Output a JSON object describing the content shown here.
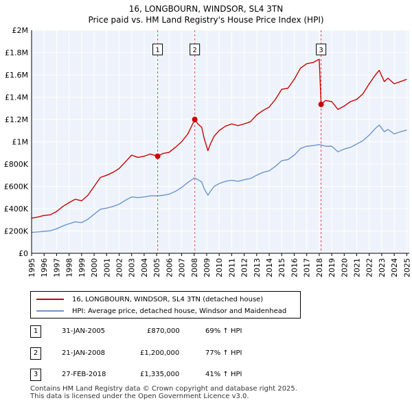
{
  "chart_data": {
    "type": "line",
    "title": "16, LONGBOURN, WINDSOR, SL4 3TN",
    "subtitle": "Price paid vs. HM Land Registry's House Price Index (HPI)",
    "xlim": [
      1995,
      2025.2
    ],
    "ylim": [
      0,
      2000000
    ],
    "x_ticks": [
      1995,
      1996,
      1997,
      1998,
      1999,
      2000,
      2001,
      2002,
      2003,
      2004,
      2005,
      2006,
      2007,
      2008,
      2009,
      2010,
      2011,
      2012,
      2013,
      2014,
      2015,
      2016,
      2017,
      2018,
      2019,
      2020,
      2021,
      2022,
      2023,
      2024,
      2025
    ],
    "y_ticks": [
      {
        "value": 0,
        "label": "£0"
      },
      {
        "value": 200000,
        "label": "£200K"
      },
      {
        "value": 400000,
        "label": "£400K"
      },
      {
        "value": 600000,
        "label": "£600K"
      },
      {
        "value": 800000,
        "label": "£800K"
      },
      {
        "value": 1000000,
        "label": "£1M"
      },
      {
        "value": 1200000,
        "label": "£1.2M"
      },
      {
        "value": 1400000,
        "label": "£1.4M"
      },
      {
        "value": 1600000,
        "label": "£1.6M"
      },
      {
        "value": 1800000,
        "label": "£1.8M"
      },
      {
        "value": 2000000,
        "label": "£2M"
      }
    ],
    "grid": true,
    "series": [
      {
        "name": "16, LONGBOURN, WINDSOR, SL4 3TN (detached house)",
        "color": "#cc0000",
        "x": [
          1995.0,
          1995.5,
          1996.0,
          1996.5,
          1997.0,
          1997.5,
          1998.0,
          1998.5,
          1999.0,
          1999.5,
          2000.0,
          2000.5,
          2001.0,
          2001.5,
          2002.0,
          2002.5,
          2003.0,
          2003.5,
          2004.0,
          2004.5,
          2005.08,
          2005.5,
          2006.0,
          2006.5,
          2007.0,
          2007.5,
          2008.05,
          2008.3,
          2008.6,
          2008.8,
          2009.1,
          2009.3,
          2009.6,
          2010.0,
          2010.5,
          2011.0,
          2011.5,
          2012.0,
          2012.5,
          2013.0,
          2013.5,
          2014.0,
          2014.5,
          2015.0,
          2015.5,
          2016.0,
          2016.5,
          2017.0,
          2017.5,
          2018.0,
          2018.15,
          2018.5,
          2019.0,
          2019.5,
          2020.0,
          2020.5,
          2021.0,
          2021.5,
          2022.0,
          2022.5,
          2022.8,
          2023.2,
          2023.5,
          2024.0,
          2024.5,
          2025.0
        ],
        "y": [
          315000,
          325000,
          340000,
          345000,
          375000,
          420000,
          455000,
          485000,
          470000,
          520000,
          600000,
          680000,
          700000,
          725000,
          760000,
          820000,
          880000,
          860000,
          870000,
          890000,
          870000,
          895000,
          905000,
          950000,
          1000000,
          1070000,
          1200000,
          1160000,
          1130000,
          1030000,
          920000,
          980000,
          1050000,
          1100000,
          1140000,
          1160000,
          1145000,
          1160000,
          1180000,
          1240000,
          1280000,
          1310000,
          1380000,
          1470000,
          1480000,
          1560000,
          1660000,
          1700000,
          1710000,
          1740000,
          1335000,
          1370000,
          1360000,
          1290000,
          1320000,
          1360000,
          1380000,
          1430000,
          1520000,
          1600000,
          1640000,
          1540000,
          1570000,
          1520000,
          1540000,
          1560000
        ]
      },
      {
        "name": "HPI: Average price, detached house, Windsor and Maidenhead",
        "color": "#6a95cc",
        "x": [
          1995.0,
          1995.5,
          1996.0,
          1996.5,
          1997.0,
          1997.5,
          1998.0,
          1998.5,
          1999.0,
          1999.5,
          2000.0,
          2000.5,
          2001.0,
          2001.5,
          2002.0,
          2002.5,
          2003.0,
          2003.5,
          2004.0,
          2004.5,
          2005.0,
          2005.5,
          2006.0,
          2006.5,
          2007.0,
          2007.5,
          2008.0,
          2008.3,
          2008.6,
          2008.8,
          2009.1,
          2009.3,
          2009.6,
          2010.0,
          2010.5,
          2011.0,
          2011.5,
          2012.0,
          2012.5,
          2013.0,
          2013.5,
          2014.0,
          2014.5,
          2015.0,
          2015.5,
          2016.0,
          2016.5,
          2017.0,
          2017.5,
          2018.0,
          2018.5,
          2019.0,
          2019.5,
          2020.0,
          2020.5,
          2021.0,
          2021.5,
          2022.0,
          2022.5,
          2022.8,
          2023.2,
          2023.5,
          2024.0,
          2024.5,
          2025.0
        ],
        "y": [
          187000,
          192000,
          197000,
          202000,
          220000,
          245000,
          265000,
          282000,
          275000,
          305000,
          350000,
          395000,
          405000,
          420000,
          440000,
          475000,
          505000,
          500000,
          505000,
          515000,
          515000,
          520000,
          530000,
          555000,
          590000,
          635000,
          675000,
          660000,
          640000,
          580000,
          520000,
          555000,
          600000,
          625000,
          645000,
          655000,
          645000,
          660000,
          670000,
          700000,
          725000,
          740000,
          780000,
          830000,
          840000,
          880000,
          940000,
          960000,
          965000,
          975000,
          960000,
          960000,
          910000,
          935000,
          950000,
          980000,
          1010000,
          1060000,
          1120000,
          1150000,
          1090000,
          1110000,
          1070000,
          1090000,
          1105000
        ]
      }
    ],
    "transactions": [
      {
        "label": "1",
        "x": 2005.08,
        "y": 870000,
        "date": "31-JAN-2005",
        "price": "£870,000",
        "hpi": "69% ↑ HPI"
      },
      {
        "label": "2",
        "x": 2008.05,
        "y": 1200000,
        "date": "21-JAN-2008",
        "price": "£1,200,000",
        "hpi": "77% ↑ HPI"
      },
      {
        "label": "3",
        "x": 2018.15,
        "y": 1335000,
        "date": "27-FEB-2018",
        "price": "£1,335,000",
        "hpi": "41% ↑ HPI"
      }
    ]
  },
  "legend": {
    "series1": "16, LONGBOURN, WINDSOR, SL4 3TN (detached house)",
    "series2": "HPI: Average price, detached house, Windsor and Maidenhead"
  },
  "footer": {
    "line1": "Contains HM Land Registry data © Crown copyright and database right 2025.",
    "line2": "This data is licensed under the Open Government Licence v3.0."
  },
  "colors": {
    "price_line": "#cc0000",
    "hpi_line": "#6a95cc",
    "plot_background": "#eef3fb",
    "grid": "#ffffff",
    "event_line": "#cc0000"
  }
}
